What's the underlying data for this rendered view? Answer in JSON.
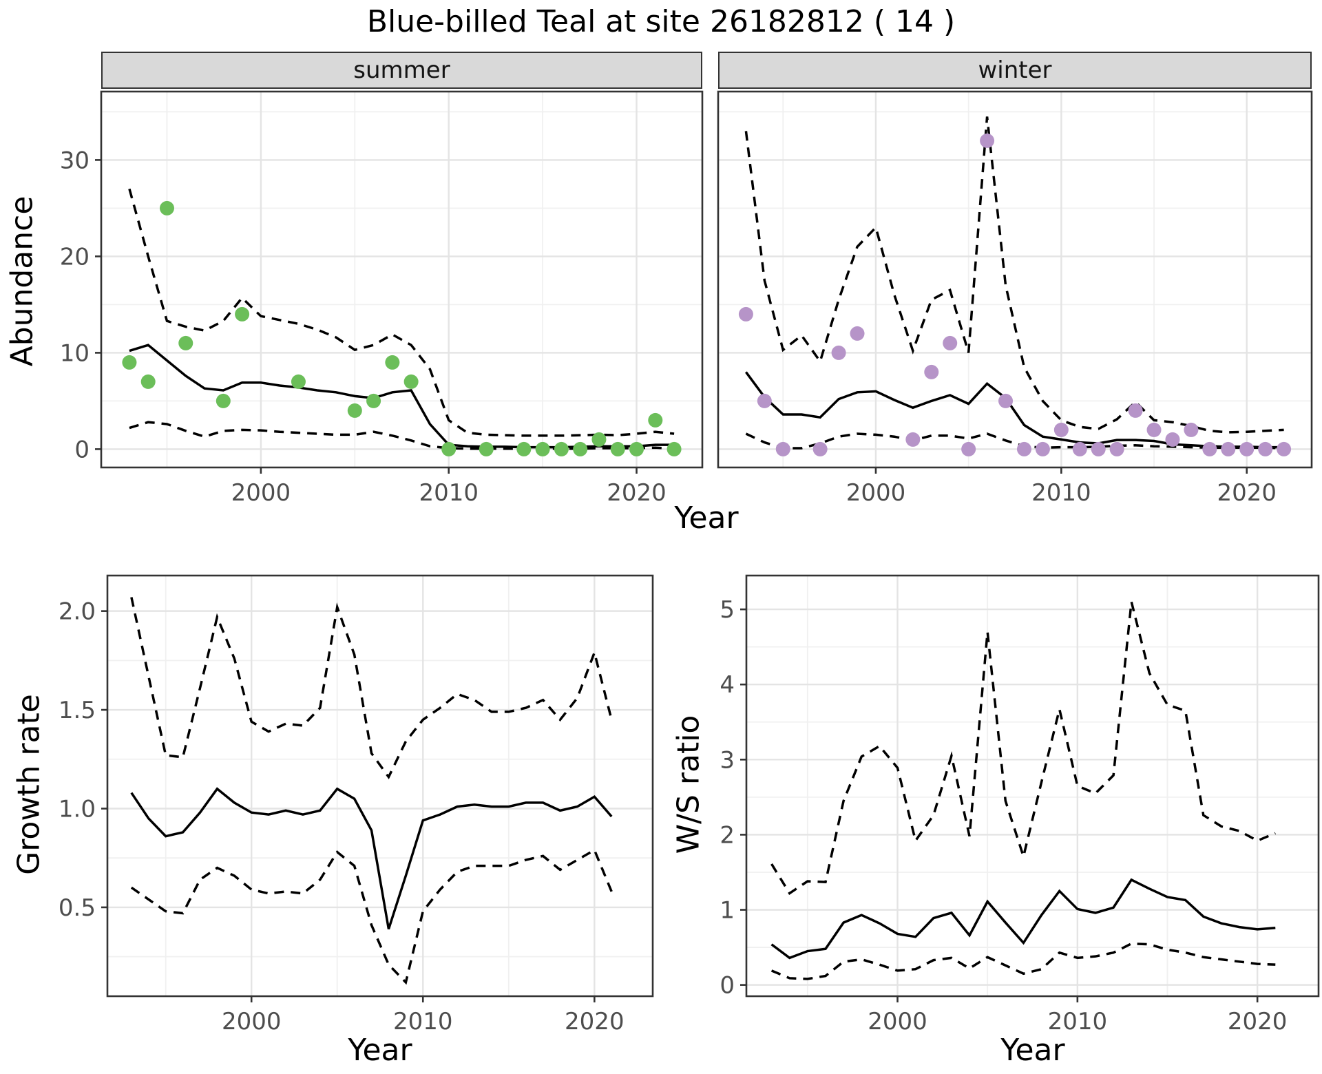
{
  "title": "Blue-billed Teal at site 26182812 ( 14 )",
  "labels": {
    "x_axis_top": "Year",
    "x_axis_growth": "Year",
    "x_axis_ws": "Year",
    "y_axis_abundance": "Abundance",
    "y_axis_growth": "Growth rate",
    "y_axis_ws": "W/S ratio"
  },
  "facets": [
    {
      "label": "summer"
    },
    {
      "label": "winter"
    }
  ],
  "colors": {
    "summer_point": "#6bbe59",
    "winter_point": "#b694c8",
    "line": "#000000",
    "strip_bg": "#d9d9d9",
    "panel_border": "#333333",
    "grid_major": "#e4e4e4",
    "grid_minor": "#f0f0f0",
    "tick_text": "#4d4d4d"
  },
  "chart_data": [
    {
      "id": "abundance_summer",
      "type": "line",
      "facet": "summer",
      "ylabel": "Abundance",
      "xlabel": "Year",
      "xlim": [
        1991.5,
        2023.5
      ],
      "ylim": [
        -1.9,
        37.1
      ],
      "x_major": [
        2000,
        2010,
        2020
      ],
      "x_major_labels": [
        "2000",
        "2010",
        "2020"
      ],
      "x_minor": [
        1995,
        2005,
        2015
      ],
      "y_major": [
        0,
        10,
        20,
        30
      ],
      "y_major_labels": [
        "0",
        "10",
        "20",
        "30"
      ],
      "y_minor": [
        5,
        15,
        25,
        35
      ],
      "line_years": [
        1993,
        1994,
        1995,
        1996,
        1997,
        1998,
        1999,
        2000,
        2001,
        2002,
        2003,
        2004,
        2005,
        2006,
        2007,
        2008,
        2009,
        2010,
        2011,
        2012,
        2013,
        2014,
        2015,
        2016,
        2017,
        2018,
        2019,
        2020,
        2021,
        2022
      ],
      "series": [
        {
          "name": "upper_ci",
          "style": "dashed",
          "values": [
            27,
            20,
            13.3,
            12.7,
            12.3,
            13.3,
            15.7,
            13.8,
            13.4,
            13.0,
            12.4,
            11.6,
            10.3,
            10.8,
            11.9,
            10.8,
            8.3,
            3.0,
            1.7,
            1.5,
            1.45,
            1.4,
            1.4,
            1.4,
            1.45,
            1.5,
            1.45,
            1.6,
            1.8,
            1.6
          ]
        },
        {
          "name": "median",
          "style": "solid",
          "values": [
            10.2,
            10.8,
            9.2,
            7.6,
            6.3,
            6.1,
            6.9,
            6.9,
            6.6,
            6.4,
            6.1,
            5.9,
            5.5,
            5.3,
            5.9,
            6.1,
            2.6,
            0.45,
            0.3,
            0.25,
            0.25,
            0.2,
            0.2,
            0.2,
            0.25,
            0.3,
            0.3,
            0.3,
            0.45,
            0.45
          ]
        },
        {
          "name": "lower_ci",
          "style": "dashed",
          "values": [
            2.2,
            2.8,
            2.6,
            1.9,
            1.3,
            1.9,
            2.0,
            1.95,
            1.8,
            1.7,
            1.6,
            1.5,
            1.5,
            1.8,
            1.4,
            0.9,
            0.3,
            0.1,
            0.05,
            0.05,
            0.05,
            0.05,
            0.05,
            0.05,
            0.05,
            0.1,
            0.1,
            0.1,
            0.15,
            0.05
          ]
        }
      ],
      "points": {
        "color_key": "summer_point",
        "x": [
          1993,
          1994,
          1995,
          1996,
          1998,
          1999,
          2002,
          2005,
          2006,
          2007,
          2008,
          2010,
          2012,
          2014,
          2015,
          2016,
          2017,
          2018,
          2019,
          2020,
          2021,
          2022
        ],
        "y": [
          9,
          7,
          25,
          11,
          5,
          14,
          7,
          4,
          5,
          9,
          7,
          0,
          0,
          0,
          0,
          0,
          0,
          1,
          0,
          0,
          3,
          0
        ]
      }
    },
    {
      "id": "abundance_winter",
      "type": "line",
      "facet": "winter",
      "ylabel": "Abundance",
      "xlabel": "Year",
      "xlim": [
        1991.5,
        2023.5
      ],
      "ylim": [
        -1.9,
        37.1
      ],
      "x_major": [
        2000,
        2010,
        2020
      ],
      "x_major_labels": [
        "2000",
        "2010",
        "2020"
      ],
      "x_minor": [
        1995,
        2005,
        2015
      ],
      "y_major": [
        0,
        10,
        20,
        30
      ],
      "y_major_labels": [
        "0",
        "10",
        "20",
        "30"
      ],
      "y_minor": [
        5,
        15,
        25,
        35
      ],
      "line_years": [
        1993,
        1994,
        1995,
        1996,
        1997,
        1998,
        1999,
        2000,
        2001,
        2002,
        2003,
        2004,
        2005,
        2006,
        2007,
        2008,
        2009,
        2010,
        2011,
        2012,
        2013,
        2014,
        2015,
        2016,
        2017,
        2018,
        2019,
        2020,
        2021,
        2022
      ],
      "series": [
        {
          "name": "upper_ci",
          "style": "dashed",
          "values": [
            33,
            17.5,
            10.3,
            11.8,
            9.1,
            15.5,
            21,
            23,
            16,
            10.2,
            15.5,
            16.5,
            10,
            34.5,
            17,
            8.5,
            5.0,
            3.0,
            2.3,
            2.1,
            3.1,
            4.9,
            3.0,
            2.8,
            2.4,
            1.9,
            1.75,
            1.8,
            1.9,
            2.0
          ]
        },
        {
          "name": "median",
          "style": "solid",
          "values": [
            8.0,
            5.4,
            3.6,
            3.6,
            3.3,
            5.2,
            5.9,
            6.0,
            5.1,
            4.3,
            5.0,
            5.6,
            4.7,
            6.8,
            5.3,
            2.5,
            1.3,
            1.0,
            0.7,
            0.6,
            0.95,
            0.95,
            0.85,
            0.5,
            0.4,
            0.3,
            0.25,
            0.25,
            0.2,
            0.2
          ]
        },
        {
          "name": "lower_ci",
          "style": "dashed",
          "values": [
            1.6,
            0.7,
            0.1,
            0.1,
            0.6,
            1.3,
            1.6,
            1.5,
            1.3,
            0.9,
            1.4,
            1.4,
            1.1,
            1.6,
            0.9,
            0.3,
            0.15,
            0.2,
            0.2,
            0.25,
            0.35,
            0.4,
            0.3,
            0.25,
            0.2,
            0.15,
            0.15,
            0.15,
            0.15,
            0.1
          ]
        }
      ],
      "points": {
        "color_key": "winter_point",
        "x": [
          1993,
          1994,
          1995,
          1997,
          1998,
          1999,
          2002,
          2003,
          2004,
          2005,
          2006,
          2007,
          2008,
          2009,
          2010,
          2011,
          2012,
          2013,
          2014,
          2015,
          2016,
          2017,
          2018,
          2019,
          2020,
          2021,
          2022
        ],
        "y": [
          14,
          5,
          0,
          0,
          10,
          12,
          1,
          8,
          11,
          0,
          32,
          5,
          0,
          0,
          2,
          0,
          0,
          0,
          4,
          2,
          1,
          2,
          0,
          0,
          0,
          0,
          0
        ]
      }
    },
    {
      "id": "growth_rate",
      "type": "line",
      "ylabel": "Growth rate",
      "xlabel": "Year",
      "xlim": [
        1991.6,
        2023.4
      ],
      "ylim": [
        0.05,
        2.18
      ],
      "x_major": [
        2000,
        2010,
        2020
      ],
      "x_major_labels": [
        "2000",
        "2010",
        "2020"
      ],
      "x_minor": [
        1995,
        2005,
        2015
      ],
      "y_major": [
        0.5,
        1.0,
        1.5,
        2.0
      ],
      "y_major_labels": [
        "0.5",
        "1.0",
        "1.5",
        "2.0"
      ],
      "y_minor": [
        0.25,
        0.75,
        1.25,
        1.75
      ],
      "line_years": [
        1993,
        1994,
        1995,
        1996,
        1997,
        1998,
        1999,
        2000,
        2001,
        2002,
        2003,
        2004,
        2005,
        2006,
        2007,
        2008,
        2009,
        2010,
        2011,
        2012,
        2013,
        2014,
        2015,
        2016,
        2017,
        2018,
        2019,
        2020,
        2021
      ],
      "series": [
        {
          "name": "upper_ci",
          "style": "dashed",
          "values": [
            2.07,
            1.67,
            1.27,
            1.26,
            1.61,
            1.97,
            1.76,
            1.44,
            1.39,
            1.43,
            1.42,
            1.51,
            2.02,
            1.78,
            1.28,
            1.16,
            1.34,
            1.45,
            1.51,
            1.58,
            1.55,
            1.49,
            1.49,
            1.51,
            1.55,
            1.45,
            1.56,
            1.79,
            1.45
          ]
        },
        {
          "name": "median",
          "style": "solid",
          "values": [
            1.08,
            0.95,
            0.86,
            0.88,
            0.98,
            1.1,
            1.03,
            0.98,
            0.97,
            0.99,
            0.97,
            0.99,
            1.1,
            1.05,
            0.89,
            0.39,
            0.66,
            0.94,
            0.97,
            1.01,
            1.02,
            1.01,
            1.01,
            1.03,
            1.03,
            0.99,
            1.01,
            1.06,
            0.96
          ]
        },
        {
          "name": "lower_ci",
          "style": "dashed",
          "values": [
            0.6,
            0.54,
            0.48,
            0.47,
            0.64,
            0.7,
            0.66,
            0.59,
            0.57,
            0.58,
            0.57,
            0.64,
            0.78,
            0.71,
            0.41,
            0.21,
            0.12,
            0.48,
            0.59,
            0.68,
            0.71,
            0.71,
            0.71,
            0.74,
            0.76,
            0.69,
            0.74,
            0.79,
            0.58
          ]
        }
      ],
      "points": null
    },
    {
      "id": "ws_ratio",
      "type": "line",
      "ylabel": "W/S ratio",
      "xlabel": "Year",
      "xlim": [
        1991.6,
        2023.4
      ],
      "ylim": [
        -0.15,
        5.45
      ],
      "x_major": [
        2000,
        2010,
        2020
      ],
      "x_major_labels": [
        "2000",
        "2010",
        "2020"
      ],
      "x_minor": [
        1995,
        2005,
        2015
      ],
      "y_major": [
        0,
        1,
        2,
        3,
        4,
        5
      ],
      "y_major_labels": [
        "0",
        "1",
        "2",
        "3",
        "4",
        "5"
      ],
      "y_minor": [
        0.5,
        1.5,
        2.5,
        3.5,
        4.5
      ],
      "line_years": [
        1993,
        1994,
        1995,
        1996,
        1997,
        1998,
        1999,
        2000,
        2001,
        2002,
        2003,
        2004,
        2005,
        2006,
        2007,
        2008,
        2009,
        2010,
        2011,
        2012,
        2013,
        2014,
        2015,
        2016,
        2017,
        2018,
        2019,
        2020,
        2021
      ],
      "series": [
        {
          "name": "upper_ci",
          "style": "dashed",
          "values": [
            1.61,
            1.22,
            1.38,
            1.37,
            2.45,
            3.04,
            3.18,
            2.89,
            1.92,
            2.26,
            3.05,
            1.98,
            4.7,
            2.45,
            1.71,
            2.7,
            3.67,
            2.65,
            2.55,
            2.79,
            5.1,
            4.15,
            3.73,
            3.65,
            2.26,
            2.11,
            2.05,
            1.92,
            2.02
          ]
        },
        {
          "name": "median",
          "style": "solid",
          "values": [
            0.54,
            0.36,
            0.45,
            0.48,
            0.83,
            0.93,
            0.82,
            0.68,
            0.64,
            0.89,
            0.96,
            0.66,
            1.11,
            0.83,
            0.56,
            0.93,
            1.25,
            1.01,
            0.96,
            1.03,
            1.4,
            1.28,
            1.17,
            1.13,
            0.91,
            0.82,
            0.77,
            0.74,
            0.76
          ]
        },
        {
          "name": "lower_ci",
          "style": "dashed",
          "values": [
            0.19,
            0.09,
            0.08,
            0.12,
            0.31,
            0.34,
            0.27,
            0.19,
            0.21,
            0.33,
            0.36,
            0.22,
            0.37,
            0.26,
            0.15,
            0.21,
            0.43,
            0.36,
            0.38,
            0.43,
            0.55,
            0.54,
            0.47,
            0.43,
            0.37,
            0.34,
            0.31,
            0.28,
            0.27
          ]
        }
      ],
      "points": null
    }
  ]
}
